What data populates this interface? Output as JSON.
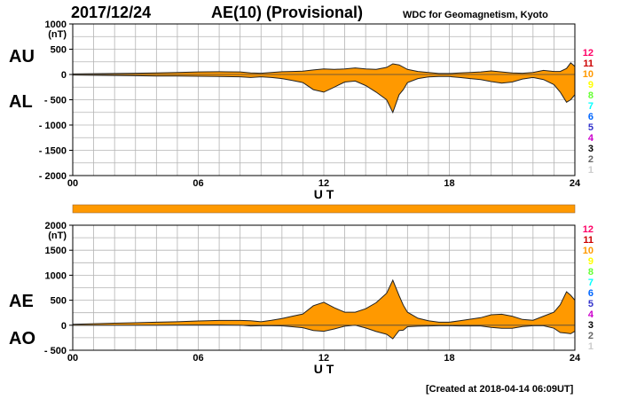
{
  "header": {
    "date": "2017/12/24",
    "title": "AE(10) (Provisional)",
    "credit": "WDC for Geomagnetism, Kyoto"
  },
  "footer": {
    "created": "[Created at 2018-04-14 06:09UT]"
  },
  "legend": {
    "hours": [
      "12",
      "11",
      "10",
      "9",
      "8",
      "7",
      "6",
      "5",
      "4",
      "3",
      "2",
      "1"
    ],
    "colors": [
      "#ff0066",
      "#cc0000",
      "#ff9900",
      "#ffff00",
      "#66ff33",
      "#00ffff",
      "#0066ff",
      "#3333cc",
      "#cc00cc",
      "#000000",
      "#666666",
      "#cccccc"
    ]
  },
  "coverage_bar": {
    "color": "#ff9900"
  },
  "chart_data": [
    {
      "type": "area",
      "panel": "AU/AL",
      "side_labels": [
        "AU",
        "AL"
      ],
      "xlabel": "U T",
      "xticks": [
        "00",
        "06",
        "12",
        "18",
        "24"
      ],
      "xlim": [
        0,
        24
      ],
      "yunit": "(nT)",
      "ylim": [
        -2000,
        1000
      ],
      "yticks": [
        1000,
        500,
        0,
        -500,
        -1000,
        -1500,
        -2000
      ],
      "ytick_labels": [
        "1000",
        "500",
        "0",
        "- 500",
        "- 1000",
        "- 1500",
        "- 2000"
      ],
      "fill_color": "#ff9900",
      "series": [
        {
          "name": "AU",
          "x": [
            0,
            1,
            2,
            3,
            4,
            5,
            6,
            7,
            8,
            8.5,
            9,
            9.5,
            10,
            10.5,
            11,
            11.5,
            12,
            12.5,
            13,
            13.5,
            14,
            14.5,
            15,
            15.3,
            15.6,
            16,
            16.5,
            17,
            17.5,
            18,
            18.5,
            19,
            19.5,
            20,
            20.5,
            21,
            21.5,
            22,
            22.5,
            23,
            23.3,
            23.6,
            23.8,
            24
          ],
          "values": [
            10,
            15,
            20,
            25,
            30,
            40,
            50,
            55,
            50,
            30,
            25,
            40,
            55,
            60,
            65,
            90,
            110,
            100,
            110,
            130,
            110,
            100,
            140,
            210,
            190,
            100,
            60,
            40,
            20,
            20,
            30,
            40,
            50,
            70,
            50,
            30,
            25,
            40,
            80,
            60,
            60,
            120,
            230,
            160
          ]
        },
        {
          "name": "AL",
          "x": [
            0,
            1,
            2,
            3,
            4,
            5,
            6,
            7,
            8,
            8.5,
            9,
            9.5,
            10,
            10.5,
            11,
            11.5,
            12,
            12.5,
            13,
            13.5,
            14,
            14.5,
            15,
            15.3,
            15.6,
            15.8,
            16,
            16.5,
            17,
            17.5,
            18,
            18.5,
            19,
            19.5,
            20,
            20.5,
            21,
            21.5,
            22,
            22.5,
            23,
            23.3,
            23.6,
            23.8,
            24
          ],
          "values": [
            -10,
            -15,
            -20,
            -25,
            -30,
            -30,
            -35,
            -40,
            -45,
            -60,
            -45,
            -60,
            -80,
            -120,
            -160,
            -300,
            -350,
            -250,
            -150,
            -130,
            -220,
            -350,
            -500,
            -750,
            -400,
            -300,
            -160,
            -80,
            -50,
            -40,
            -40,
            -60,
            -80,
            -100,
            -140,
            -170,
            -150,
            -90,
            -60,
            -100,
            -200,
            -350,
            -550,
            -500,
            -400
          ]
        }
      ]
    },
    {
      "type": "area",
      "panel": "AE/AO",
      "side_labels": [
        "AE",
        "AO"
      ],
      "xlabel": "U T",
      "xticks": [
        "00",
        "06",
        "12",
        "18",
        "24"
      ],
      "xlim": [
        0,
        24
      ],
      "yunit": "(nT)",
      "ylim": [
        -500,
        2000
      ],
      "yticks": [
        2000,
        1500,
        1000,
        500,
        0,
        -500
      ],
      "ytick_labels": [
        "2000",
        "1500",
        "1000",
        "500",
        "0",
        "- 500"
      ],
      "fill_color": "#ff9900",
      "series": [
        {
          "name": "AE",
          "x": [
            0,
            1,
            2,
            3,
            4,
            5,
            6,
            7,
            8,
            8.5,
            9,
            9.5,
            10,
            10.5,
            11,
            11.5,
            12,
            12.5,
            13,
            13.5,
            14,
            14.5,
            15,
            15.3,
            15.6,
            15.8,
            16,
            16.5,
            17,
            17.5,
            18,
            18.5,
            19,
            19.5,
            20,
            20.5,
            21,
            21.5,
            22,
            22.5,
            23,
            23.3,
            23.6,
            23.8,
            24
          ],
          "values": [
            20,
            30,
            40,
            50,
            60,
            70,
            85,
            95,
            95,
            90,
            70,
            100,
            135,
            180,
            225,
            390,
            460,
            350,
            260,
            260,
            330,
            450,
            640,
            900,
            590,
            400,
            260,
            140,
            90,
            60,
            60,
            90,
            120,
            150,
            210,
            220,
            180,
            115,
            100,
            180,
            260,
            410,
            670,
            600,
            500
          ]
        },
        {
          "name": "AO",
          "x": [
            0,
            1,
            2,
            3,
            4,
            5,
            6,
            7,
            8,
            8.5,
            9,
            9.5,
            10,
            10.5,
            11,
            11.5,
            12,
            12.5,
            13,
            13.5,
            14,
            14.5,
            15,
            15.3,
            15.6,
            15.8,
            16,
            16.5,
            17,
            17.5,
            18,
            18.5,
            19,
            19.5,
            20,
            20.5,
            21,
            21.5,
            22,
            22.5,
            23,
            23.3,
            23.6,
            23.8,
            24
          ],
          "values": [
            0,
            0,
            0,
            0,
            0,
            5,
            7,
            7,
            2,
            -15,
            -10,
            -10,
            -12,
            -30,
            -50,
            -105,
            -120,
            -75,
            -20,
            0,
            -55,
            -125,
            -180,
            -270,
            -105,
            -100,
            -30,
            -20,
            -15,
            -10,
            -10,
            -15,
            -15,
            -15,
            -45,
            -60,
            -60,
            -25,
            -10,
            -10,
            -60,
            -145,
            -160,
            -170,
            -120
          ]
        }
      ]
    }
  ]
}
